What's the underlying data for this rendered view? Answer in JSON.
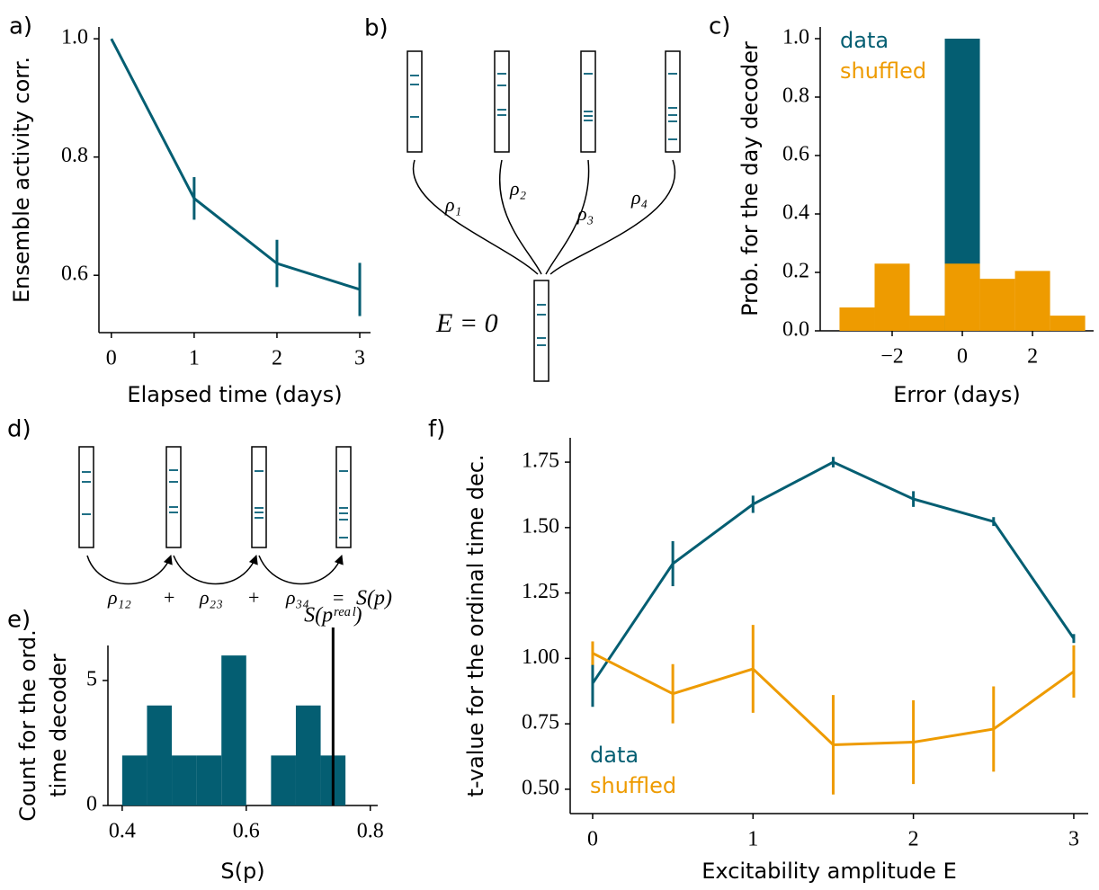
{
  "diagram_b": {
    "panel": "b)",
    "links": [
      "ρ₁",
      "ρ₂",
      "ρ₃",
      "ρ₄"
    ],
    "root_label": "E = 0"
  },
  "diagram_d": {
    "panel": "d)",
    "terms": [
      "ρ₁₂",
      "+",
      "ρ₂₃",
      "+",
      "ρ₃₄",
      "=",
      "S(p)"
    ]
  },
  "chart_data": [
    {
      "panel": "a)",
      "type": "line",
      "xlabel": "Elapsed time (days)",
      "ylabel": [
        "Ensemble activity corr."
      ],
      "x": [
        0,
        1,
        2,
        3
      ],
      "series": [
        {
          "color": "#045e72",
          "values": [
            1.0,
            0.73,
            0.62,
            0.576
          ],
          "errors": [
            null,
            0.036,
            0.04,
            0.045
          ]
        }
      ],
      "xlim": [
        -0.15,
        3.13
      ],
      "ylim": [
        0.503,
        1.02
      ],
      "xticks": [
        0,
        1,
        2,
        3
      ],
      "yticks": [
        {
          "value": 0.6,
          "label": "0.6"
        },
        {
          "value": 0.8,
          "label": "0.8"
        },
        {
          "value": 1.0,
          "label": "1.0"
        }
      ]
    },
    {
      "panel": "c)",
      "type": "histogram",
      "xlabel": "Error (days)",
      "ylabel": [
        "Prob. for the day decoder"
      ],
      "bins": [
        -3.5,
        -2.5,
        -1.5,
        -0.5,
        0.5,
        1.5,
        2.5,
        3.5
      ],
      "series": [
        {
          "name": "data",
          "color": "#045e72",
          "values": [
            0,
            0,
            0,
            1.0,
            0,
            0,
            0
          ]
        },
        {
          "name": "shuffled",
          "color": "#ee9b00",
          "values": [
            0.08,
            0.23,
            0.052,
            0.23,
            0.178,
            0.205,
            0.052
          ]
        }
      ],
      "legend": "upper left",
      "xlim": [
        -4.05,
        3.74
      ],
      "ylim": [
        0,
        1.04
      ],
      "xticks": [
        {
          "value": -2,
          "label": "−2"
        },
        0,
        2
      ],
      "yticks": [
        {
          "value": 0,
          "label": "0.0"
        },
        0.2,
        0.4,
        0.6,
        0.8,
        {
          "value": 1,
          "label": "1.0"
        }
      ]
    },
    {
      "panel": "e)",
      "type": "histogram",
      "xlabel": "S(p)",
      "ylabel": [
        "Count for the ord.",
        "time decoder"
      ],
      "bins": [
        0.4,
        0.44,
        0.48,
        0.52,
        0.56,
        0.6,
        0.64,
        0.68,
        0.72,
        0.76
      ],
      "series": [
        {
          "color": "#045e72",
          "values": [
            2,
            4,
            2,
            2,
            6,
            0,
            2,
            4,
            2
          ]
        }
      ],
      "vline": {
        "x": 0.74,
        "label": "S(pʳᵉᵃˡ)"
      },
      "xlim": [
        0.377,
        0.812
      ],
      "ylim": [
        0,
        6.4
      ],
      "xticks": [
        0.4,
        0.6,
        0.8
      ],
      "yticks": [
        0,
        5
      ]
    },
    {
      "panel": "f)",
      "type": "line",
      "xlabel": "Excitability amplitude E",
      "ylabel": [
        "t-value for the ordinal time dec."
      ],
      "x": [
        0,
        0.5,
        1,
        1.5,
        2,
        2.5,
        3
      ],
      "series": [
        {
          "name": "data",
          "color": "#045e72",
          "values": [
            0.905,
            1.362,
            1.589,
            1.75,
            1.609,
            1.523,
            1.076
          ],
          "errors": [
            0.09,
            0.086,
            0.033,
            0.02,
            0.03,
            0.017,
            0.017
          ]
        },
        {
          "name": "shuffled",
          "color": "#ee9b00",
          "values": [
            1.02,
            0.865,
            0.96,
            0.67,
            0.68,
            0.73,
            0.95
          ],
          "errors": [
            0.045,
            0.113,
            0.168,
            0.19,
            0.16,
            0.163,
            0.1
          ]
        }
      ],
      "legend": "lower left",
      "xlim": [
        -0.14,
        3.09
      ],
      "ylim": [
        0.407,
        1.843
      ],
      "xticks": [
        0,
        1,
        2,
        3
      ],
      "yticks": [
        {
          "value": 0.5,
          "label": "0.50"
        },
        0.75,
        {
          "value": 1,
          "label": "1.00"
        },
        1.25,
        {
          "value": 1.5,
          "label": "1.50"
        },
        1.75
      ]
    }
  ]
}
